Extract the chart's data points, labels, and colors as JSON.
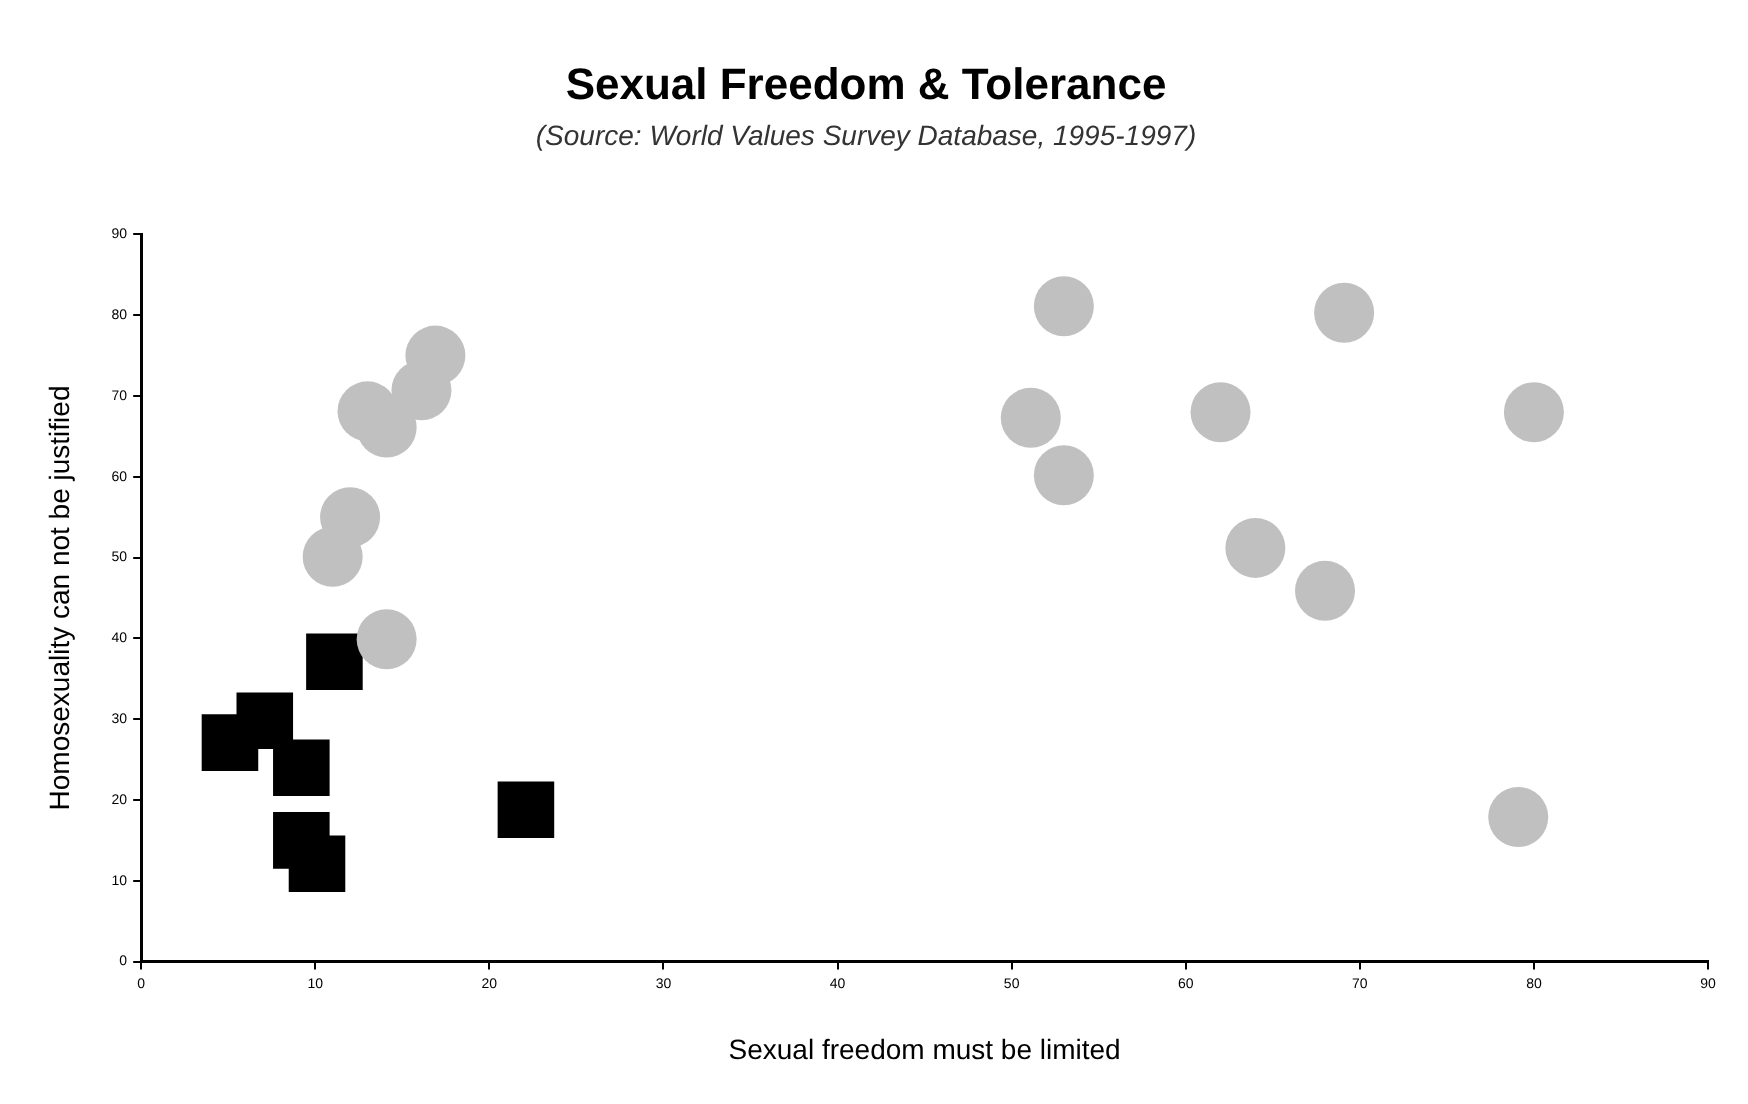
{
  "chart_data": {
    "type": "scatter",
    "title": "Sexual Freedom & Tolerance",
    "subtitle": "(Source: World Values Survey Database, 1995-1997)",
    "xlabel": "Sexual freedom must be limited",
    "ylabel": "Homosexuality can not be justified",
    "series": [
      {
        "color": "#c0c0c0",
        "marker": "circle",
        "x": [
          16.9,
          16.1,
          13.0,
          14.1,
          12.0,
          11.0,
          14.1,
          53.0,
          69.1,
          51.1,
          53.0,
          62.0,
          80.0,
          64.0,
          68.0,
          79.1
        ],
        "values": [
          75,
          70.7,
          68.1,
          66.1,
          55,
          50.1,
          39.9,
          81.1,
          80.3,
          67.3,
          60.2,
          68,
          68,
          51.2,
          45.9,
          17.9
        ]
      },
      {
        "color": "#000000",
        "marker": "square",
        "x": [
          5.1,
          7.1,
          9.2,
          11.1,
          9.2,
          10.1,
          22.1
        ],
        "values": [
          27.1,
          29.8,
          24,
          37.1,
          15,
          12.1,
          18.8
        ]
      }
    ],
    "xlim": [
      0,
      90
    ],
    "ylim": [
      0,
      90
    ],
    "xticks": [
      0,
      10,
      20,
      30,
      40,
      50,
      60,
      70,
      80,
      90
    ],
    "yticks": [
      0,
      10,
      20,
      30,
      40,
      50,
      60,
      70,
      80,
      90
    ],
    "grid": false,
    "legend": false
  }
}
